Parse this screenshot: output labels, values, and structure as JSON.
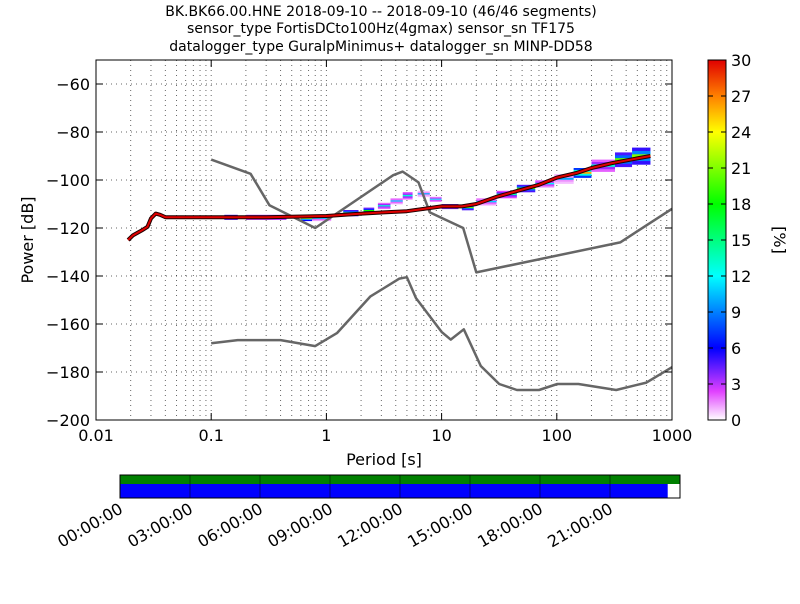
{
  "chart_data": {
    "type": "heatmap",
    "title_lines": [
      "BK.BK66.00.HNE   2018-09-10 -- 2018-09-10  (46/46 segments)",
      "sensor_type FortisDCto100Hz(4gmax) sensor_sn TF175",
      "datalogger_type GuralpMinimus+ datalogger_sn MINP-DD58"
    ],
    "xlabel": "Period [s]",
    "ylabel": "Power [dB]",
    "x_scale": "log",
    "xlim": [
      0.01,
      1000
    ],
    "ylim": [
      -200,
      -50
    ],
    "x_ticks": [
      {
        "value": 0.01,
        "label": "0.01"
      },
      {
        "value": 0.1,
        "label": "0.1"
      },
      {
        "value": 1,
        "label": "1"
      },
      {
        "value": 10,
        "label": "10"
      },
      {
        "value": 100,
        "label": "100"
      },
      {
        "value": 1000,
        "label": "1000"
      }
    ],
    "y_ticks": [
      {
        "value": -200,
        "label": "−200"
      },
      {
        "value": -180,
        "label": "−180"
      },
      {
        "value": -160,
        "label": "−160"
      },
      {
        "value": -140,
        "label": "−140"
      },
      {
        "value": -120,
        "label": "−120"
      },
      {
        "value": -100,
        "label": "−100"
      },
      {
        "value": -80,
        "label": "−80"
      },
      {
        "value": -60,
        "label": "−60"
      }
    ],
    "grid": true,
    "colorbar": {
      "label": "[%]",
      "range": [
        0,
        30
      ],
      "ticks": [
        {
          "value": 0,
          "label": "0"
        },
        {
          "value": 3,
          "label": "3"
        },
        {
          "value": 6,
          "label": "6"
        },
        {
          "value": 9,
          "label": "9"
        },
        {
          "value": 12,
          "label": "12"
        },
        {
          "value": 15,
          "label": "15"
        },
        {
          "value": 18,
          "label": "18"
        },
        {
          "value": 21,
          "label": "21"
        },
        {
          "value": 24,
          "label": "24"
        },
        {
          "value": 27,
          "label": "27"
        },
        {
          "value": 30,
          "label": "30"
        }
      ]
    },
    "noise_models": [
      {
        "name": "high",
        "points": [
          [
            0.1,
            -91.5
          ],
          [
            0.22,
            -97.4
          ],
          [
            0.32,
            -110.5
          ],
          [
            0.8,
            -120
          ],
          [
            3.8,
            -98
          ],
          [
            4.6,
            -96.5
          ],
          [
            6.3,
            -101
          ],
          [
            7.9,
            -113.5
          ],
          [
            15.4,
            -120
          ],
          [
            20,
            -138.5
          ],
          [
            354.8,
            -126
          ],
          [
            1000,
            -112
          ]
        ]
      },
      {
        "name": "low",
        "points": [
          [
            0.1,
            -168
          ],
          [
            0.17,
            -166.7
          ],
          [
            0.4,
            -166.7
          ],
          [
            0.8,
            -169.2
          ],
          [
            1.24,
            -163.7
          ],
          [
            2.4,
            -148.6
          ],
          [
            4.3,
            -141.1
          ],
          [
            5,
            -140.5
          ],
          [
            6,
            -149.2
          ],
          [
            10,
            -163.3
          ],
          [
            12,
            -166.5
          ],
          [
            15.6,
            -162.2
          ],
          [
            21.9,
            -177.5
          ],
          [
            31.6,
            -185
          ],
          [
            45,
            -187.5
          ],
          [
            70,
            -187.5
          ],
          [
            101,
            -185
          ],
          [
            154,
            -185
          ],
          [
            328,
            -187.5
          ],
          [
            600,
            -184.4
          ],
          [
            1000,
            -178
          ]
        ]
      }
    ],
    "psd_median": [
      [
        0.019,
        -125
      ],
      [
        0.021,
        -123
      ],
      [
        0.025,
        -121
      ],
      [
        0.028,
        -119.5
      ],
      [
        0.03,
        -116
      ],
      [
        0.033,
        -114
      ],
      [
        0.036,
        -114.5
      ],
      [
        0.04,
        -115.5
      ],
      [
        0.1,
        -115.5
      ],
      [
        0.3,
        -115.5
      ],
      [
        1,
        -115
      ],
      [
        2,
        -114
      ],
      [
        5,
        -113
      ],
      [
        10,
        -111
      ],
      [
        15,
        -111
      ],
      [
        20,
        -110
      ],
      [
        30,
        -107
      ],
      [
        50,
        -104
      ],
      [
        70,
        -102
      ],
      [
        100,
        -99
      ],
      [
        150,
        -97
      ],
      [
        200,
        -95
      ],
      [
        300,
        -93
      ],
      [
        500,
        -91
      ],
      [
        650,
        -90
      ]
    ],
    "psd_spread": [
      {
        "x0": 0.13,
        "x1": 0.17,
        "y0": -116.5,
        "y1": -114.5,
        "pct": 12
      },
      {
        "x0": 0.2,
        "x1": 0.45,
        "y0": -116.5,
        "y1": -114.5,
        "pct": 8
      },
      {
        "x0": 0.6,
        "x1": 0.75,
        "y0": -117,
        "y1": -115,
        "pct": 15
      },
      {
        "x0": 0.75,
        "x1": 1.1,
        "y0": -117,
        "y1": -115,
        "pct": 3
      },
      {
        "x0": 1.4,
        "x1": 1.9,
        "y0": -115,
        "y1": -112.5,
        "pct": 12
      },
      {
        "x0": 2.1,
        "x1": 2.6,
        "y0": -114,
        "y1": -111.5,
        "pct": 10
      },
      {
        "x0": 2.8,
        "x1": 3.6,
        "y0": -112,
        "y1": -109.5,
        "pct": 5
      },
      {
        "x0": 3.6,
        "x1": 4.6,
        "y0": -110,
        "y1": -107.5,
        "pct": 3
      },
      {
        "x0": 4.6,
        "x1": 5.6,
        "y0": -108,
        "y1": -105,
        "pct": 5
      },
      {
        "x0": 6.2,
        "x1": 7.9,
        "y0": -107,
        "y1": -104.5,
        "pct": 2
      },
      {
        "x0": 7.9,
        "x1": 10,
        "y0": -109,
        "y1": -107,
        "pct": 4
      },
      {
        "x0": 10,
        "x1": 14,
        "y0": -112,
        "y1": -110,
        "pct": 10
      },
      {
        "x0": 15,
        "x1": 19,
        "y0": -112.5,
        "y1": -110.5,
        "pct": 12
      },
      {
        "x0": 20,
        "x1": 30,
        "y0": -110.5,
        "y1": -107.5,
        "pct": 3
      },
      {
        "x0": 30,
        "x1": 45,
        "y0": -107.5,
        "y1": -104.5,
        "pct": 6
      },
      {
        "x0": 45,
        "x1": 65,
        "y0": -105,
        "y1": -102,
        "pct": 12
      },
      {
        "x0": 65,
        "x1": 95,
        "y0": -103,
        "y1": -100,
        "pct": 4
      },
      {
        "x0": 95,
        "x1": 140,
        "y0": -101.5,
        "y1": -97.5,
        "pct": 2
      },
      {
        "x0": 140,
        "x1": 200,
        "y0": -99,
        "y1": -95,
        "pct": 18
      },
      {
        "x0": 200,
        "x1": 320,
        "y0": -96.5,
        "y1": -91.5,
        "pct": 5
      },
      {
        "x0": 320,
        "x1": 450,
        "y0": -94.5,
        "y1": -88.5,
        "pct": 12
      },
      {
        "x0": 450,
        "x1": 650,
        "y0": -93.5,
        "y1": -86.5,
        "pct": 13
      }
    ],
    "timeline": {
      "labels": [
        "00:00:00",
        "03:00:00",
        "06:00:00",
        "09:00:00",
        "12:00:00",
        "15:00:00",
        "18:00:00",
        "21:00:00"
      ],
      "coverage_fraction": 0.978
    }
  }
}
